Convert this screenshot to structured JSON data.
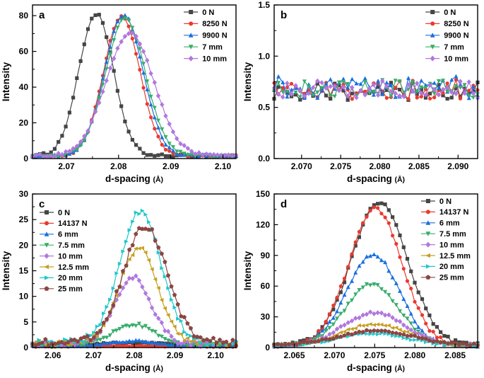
{
  "figure": {
    "background": "#ffffff"
  },
  "chart_data": [
    {
      "type": "line",
      "label": "a",
      "xlabel": "d-spacing",
      "xlabel_unit": "(Å)",
      "ylabel": "Intensity",
      "xlim": [
        2.0635,
        2.1025
      ],
      "ylim": [
        0,
        86
      ],
      "xticks": [
        2.07,
        2.08,
        2.09,
        2.1
      ],
      "xtick_labels": [
        "2.07",
        "2.08",
        "2.09",
        "2.10"
      ],
      "yticks": [
        0,
        20,
        40,
        60,
        80
      ],
      "ytick_labels": [
        "0",
        "20",
        "40",
        "60",
        "80"
      ],
      "samples": 56,
      "legend": {
        "position": "top-right"
      },
      "series": [
        {
          "name": "0 N",
          "color": "#454545",
          "marker": "square",
          "center": 2.0757,
          "fwhm": 0.0078,
          "height": 79.5,
          "baseline": 1.5,
          "noise": 0.8,
          "peak_intensity": 81
        },
        {
          "name": "8250 N",
          "color": "#e93a2e",
          "marker": "circle",
          "center": 2.0806,
          "fwhm": 0.0082,
          "height": 78.0,
          "baseline": 1.5,
          "noise": 0.8,
          "peak_intensity": 80
        },
        {
          "name": "9900 N",
          "color": "#1a6fdf",
          "marker": "triangle-up",
          "center": 2.081,
          "fwhm": 0.0086,
          "height": 79.0,
          "baseline": 1.5,
          "noise": 0.8,
          "peak_intensity": 81
        },
        {
          "name": "7 mm",
          "color": "#37ad6b",
          "marker": "triangle-down",
          "center": 2.0813,
          "fwhm": 0.009,
          "height": 77.0,
          "baseline": 1.5,
          "noise": 0.8,
          "peak_intensity": 78
        },
        {
          "name": "10 mm",
          "color": "#b177de",
          "marker": "diamond",
          "center": 2.0822,
          "fwhm": 0.0108,
          "height": 68.5,
          "baseline": 1.5,
          "noise": 0.8,
          "peak_intensity": 70
        }
      ]
    },
    {
      "type": "line",
      "label": "b",
      "xlabel": "d-spacing",
      "xlabel_unit": "(Å)",
      "ylabel": "Intensity",
      "xlim": [
        2.0665,
        2.0925
      ],
      "ylim": [
        0,
        1.5
      ],
      "xticks": [
        2.07,
        2.075,
        2.08,
        2.085,
        2.09
      ],
      "xtick_labels": [
        "2.070",
        "2.075",
        "2.080",
        "2.085",
        "2.090"
      ],
      "yticks": [
        0.0,
        0.5,
        1.0,
        1.5
      ],
      "ytick_labels": [
        "0.0",
        "0.5",
        "1.0",
        "1.5"
      ],
      "samples": 48,
      "legend": {
        "position": "top-right"
      },
      "series": [
        {
          "name": "0 N",
          "color": "#454545",
          "marker": "square",
          "center": 2.0795,
          "fwhm": 0.01,
          "height": 0,
          "baseline": 0.66,
          "noise": 0.09,
          "peak_intensity": 0.75
        },
        {
          "name": "8250 N",
          "color": "#e93a2e",
          "marker": "circle",
          "center": 2.0795,
          "fwhm": 0.01,
          "height": 0,
          "baseline": 0.67,
          "noise": 0.1,
          "peak_intensity": 0.95
        },
        {
          "name": "9900 N",
          "color": "#1a6fdf",
          "marker": "triangle-up",
          "center": 2.0795,
          "fwhm": 0.01,
          "height": 0,
          "baseline": 0.7,
          "noise": 0.11,
          "peak_intensity": 1.05
        },
        {
          "name": "7 mm",
          "color": "#37ad6b",
          "marker": "triangle-down",
          "center": 2.0795,
          "fwhm": 0.01,
          "height": 0,
          "baseline": 0.68,
          "noise": 0.09,
          "peak_intensity": 0.9
        },
        {
          "name": "10 mm",
          "color": "#b177de",
          "marker": "diamond",
          "center": 2.0795,
          "fwhm": 0.01,
          "height": 0,
          "baseline": 0.67,
          "noise": 0.09,
          "peak_intensity": 0.85
        }
      ]
    },
    {
      "type": "line",
      "label": "c",
      "xlabel": "d-spacing",
      "xlabel_unit": "(Å)",
      "ylabel": "Intensity",
      "xlim": [
        2.055,
        2.105
      ],
      "ylim": [
        0,
        30
      ],
      "xticks": [
        2.06,
        2.07,
        2.08,
        2.09,
        2.1
      ],
      "xtick_labels": [
        "2.06",
        "2.07",
        "2.08",
        "2.09",
        "2.10"
      ],
      "yticks": [
        0,
        5,
        10,
        15,
        20,
        25,
        30
      ],
      "ytick_labels": [
        "0",
        "5",
        "10",
        "15",
        "20",
        "25",
        "30"
      ],
      "samples": 64,
      "legend": {
        "position": "top-left"
      },
      "series": [
        {
          "name": "0 N",
          "color": "#454545",
          "marker": "square",
          "center": 2.08,
          "fwhm": 0.02,
          "height": 0.4,
          "baseline": 0.5,
          "noise": 0.15,
          "peak_intensity": 0.9
        },
        {
          "name": "14137 N",
          "color": "#e93a2e",
          "marker": "circle",
          "center": 2.08,
          "fwhm": 0.012,
          "height": 0.1,
          "baseline": 0.2,
          "noise": 0.08,
          "peak_intensity": 0.3
        },
        {
          "name": "6 mm",
          "color": "#1a6fdf",
          "marker": "triangle-up",
          "center": 2.08,
          "fwhm": 0.012,
          "height": 0.9,
          "baseline": 0.4,
          "noise": 0.15,
          "peak_intensity": 1.3
        },
        {
          "name": "7.5 mm",
          "color": "#37ad6b",
          "marker": "triangle-down",
          "center": 2.08,
          "fwhm": 0.012,
          "height": 4.0,
          "baseline": 0.5,
          "noise": 0.3,
          "peak_intensity": 4.5
        },
        {
          "name": "10 mm",
          "color": "#b177de",
          "marker": "diamond",
          "center": 2.0797,
          "fwhm": 0.0105,
          "height": 13.0,
          "baseline": 0.7,
          "noise": 0.5,
          "peak_intensity": 14
        },
        {
          "name": "12.5 mm",
          "color": "#c5a020",
          "marker": "triangle-left",
          "center": 2.081,
          "fwhm": 0.0112,
          "height": 18.5,
          "baseline": 0.8,
          "noise": 0.55,
          "peak_intensity": 19.5
        },
        {
          "name": "20 mm",
          "color": "#1fc7cb",
          "marker": "triangle-right",
          "center": 2.0815,
          "fwhm": 0.0118,
          "height": 25.8,
          "baseline": 1.0,
          "noise": 0.7,
          "peak_intensity": 27
        },
        {
          "name": "25 mm",
          "color": "#8b4543",
          "marker": "pentagon",
          "center": 2.0827,
          "fwhm": 0.0125,
          "height": 22.8,
          "baseline": 1.0,
          "noise": 0.7,
          "peak_intensity": 24
        }
      ]
    },
    {
      "type": "line",
      "label": "d",
      "xlabel": "d-spacing",
      "xlabel_unit": "(Å)",
      "ylabel": "Intensity",
      "xlim": [
        2.0625,
        2.0878
      ],
      "ylim": [
        0,
        150
      ],
      "xticks": [
        2.065,
        2.07,
        2.075,
        2.08,
        2.085
      ],
      "xtick_labels": [
        "2.065",
        "2.070",
        "2.075",
        "2.080",
        "2.085"
      ],
      "yticks": [
        0,
        30,
        60,
        90,
        120,
        150
      ],
      "ytick_labels": [
        "0",
        "30",
        "60",
        "90",
        "120",
        "150"
      ],
      "samples": 56,
      "legend": {
        "position": "top-right"
      },
      "series": [
        {
          "name": "0 N",
          "color": "#454545",
          "marker": "square",
          "center": 2.0756,
          "fwhm": 0.0082,
          "height": 139,
          "baseline": 2.0,
          "noise": 2.0,
          "peak_intensity": 142
        },
        {
          "name": "14137 N",
          "color": "#e93a2e",
          "marker": "circle",
          "center": 2.0751,
          "fwhm": 0.0077,
          "height": 134,
          "baseline": 2.0,
          "noise": 2.0,
          "peak_intensity": 137
        },
        {
          "name": "6 mm",
          "color": "#1a6fdf",
          "marker": "triangle-up",
          "center": 2.0748,
          "fwhm": 0.0076,
          "height": 89,
          "baseline": 2.0,
          "noise": 1.5,
          "peak_intensity": 92
        },
        {
          "name": "7.5 mm",
          "color": "#37ad6b",
          "marker": "triangle-down",
          "center": 2.0747,
          "fwhm": 0.0078,
          "height": 60,
          "baseline": 2.0,
          "noise": 1.5,
          "peak_intensity": 63
        },
        {
          "name": "10 mm",
          "color": "#b177de",
          "marker": "diamond",
          "center": 2.075,
          "fwhm": 0.009,
          "height": 32,
          "baseline": 2.0,
          "noise": 1.2,
          "peak_intensity": 35
        },
        {
          "name": "12.5 mm",
          "color": "#c5a020",
          "marker": "triangle-left",
          "center": 2.075,
          "fwhm": 0.0095,
          "height": 21,
          "baseline": 2.0,
          "noise": 1.0,
          "peak_intensity": 23
        },
        {
          "name": "20 mm",
          "color": "#1fc7cb",
          "marker": "triangle-right",
          "center": 2.0748,
          "fwhm": 0.01,
          "height": 12,
          "baseline": 2.0,
          "noise": 1.0,
          "peak_intensity": 14
        },
        {
          "name": "25 mm",
          "color": "#8b4543",
          "marker": "pentagon",
          "center": 2.0752,
          "fwhm": 0.0108,
          "height": 14,
          "baseline": 2.5,
          "noise": 1.0,
          "peak_intensity": 17
        }
      ]
    }
  ]
}
